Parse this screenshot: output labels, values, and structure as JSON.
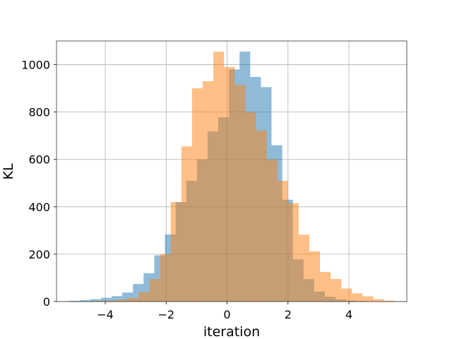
{
  "chart_data": {
    "type": "bar",
    "subtype": "overlapping-histogram",
    "xlabel": "iteration",
    "ylabel": "KL",
    "xlim": [
      -5.6,
      5.9
    ],
    "ylim": [
      0,
      1100
    ],
    "xticks": [
      -4,
      -2,
      0,
      2,
      4
    ],
    "yticks": [
      0,
      200,
      400,
      600,
      800,
      1000
    ],
    "grid": true,
    "series": [
      {
        "color": "#1f77b4",
        "opacity": 0.5,
        "bins": [
          {
            "x0": -5.19,
            "x1": -4.84,
            "value": 3
          },
          {
            "x0": -4.84,
            "x1": -4.49,
            "value": 6
          },
          {
            "x0": -4.49,
            "x1": -4.14,
            "value": 10
          },
          {
            "x0": -4.14,
            "x1": -3.79,
            "value": 16
          },
          {
            "x0": -3.79,
            "x1": -3.44,
            "value": 23
          },
          {
            "x0": -3.44,
            "x1": -3.09,
            "value": 38
          },
          {
            "x0": -3.09,
            "x1": -2.74,
            "value": 74
          },
          {
            "x0": -2.74,
            "x1": -2.39,
            "value": 120
          },
          {
            "x0": -2.39,
            "x1": -2.04,
            "value": 195
          },
          {
            "x0": -2.04,
            "x1": -1.69,
            "value": 283
          },
          {
            "x0": -1.69,
            "x1": -1.34,
            "value": 420
          },
          {
            "x0": -1.34,
            "x1": -0.99,
            "value": 510
          },
          {
            "x0": -0.99,
            "x1": -0.64,
            "value": 600
          },
          {
            "x0": -0.64,
            "x1": -0.29,
            "value": 718
          },
          {
            "x0": -0.29,
            "x1": 0.06,
            "value": 778
          },
          {
            "x0": 0.06,
            "x1": 0.41,
            "value": 980
          },
          {
            "x0": 0.41,
            "x1": 0.76,
            "value": 1055
          },
          {
            "x0": 0.76,
            "x1": 1.11,
            "value": 948
          },
          {
            "x0": 1.11,
            "x1": 1.46,
            "value": 905
          },
          {
            "x0": 1.46,
            "x1": 1.81,
            "value": 660
          },
          {
            "x0": 1.81,
            "x1": 2.16,
            "value": 430
          },
          {
            "x0": 2.16,
            "x1": 2.51,
            "value": 178
          },
          {
            "x0": 2.51,
            "x1": 2.86,
            "value": 95
          },
          {
            "x0": 2.86,
            "x1": 3.21,
            "value": 42
          },
          {
            "x0": 3.21,
            "x1": 3.56,
            "value": 20
          },
          {
            "x0": 3.56,
            "x1": 3.91,
            "value": 9
          },
          {
            "x0": 3.91,
            "x1": 4.26,
            "value": 4
          },
          {
            "x0": 4.26,
            "x1": 4.61,
            "value": 2
          }
        ]
      },
      {
        "color": "#ff7f0e",
        "opacity": 0.5,
        "bins": [
          {
            "x0": -4.3,
            "x1": -3.95,
            "value": 3
          },
          {
            "x0": -3.95,
            "x1": -3.6,
            "value": 5
          },
          {
            "x0": -3.6,
            "x1": -3.25,
            "value": 8
          },
          {
            "x0": -3.25,
            "x1": -2.9,
            "value": 15
          },
          {
            "x0": -2.9,
            "x1": -2.55,
            "value": 40
          },
          {
            "x0": -2.55,
            "x1": -2.2,
            "value": 95
          },
          {
            "x0": -2.2,
            "x1": -1.85,
            "value": 200
          },
          {
            "x0": -1.85,
            "x1": -1.5,
            "value": 420
          },
          {
            "x0": -1.5,
            "x1": -1.15,
            "value": 655
          },
          {
            "x0": -1.15,
            "x1": -0.8,
            "value": 900
          },
          {
            "x0": -0.8,
            "x1": -0.45,
            "value": 930
          },
          {
            "x0": -0.45,
            "x1": -0.1,
            "value": 1055
          },
          {
            "x0": -0.1,
            "x1": 0.25,
            "value": 990
          },
          {
            "x0": 0.25,
            "x1": 0.6,
            "value": 915
          },
          {
            "x0": 0.6,
            "x1": 0.95,
            "value": 800
          },
          {
            "x0": 0.95,
            "x1": 1.3,
            "value": 722
          },
          {
            "x0": 1.3,
            "x1": 1.65,
            "value": 600
          },
          {
            "x0": 1.65,
            "x1": 2.0,
            "value": 510
          },
          {
            "x0": 2.0,
            "x1": 2.35,
            "value": 415
          },
          {
            "x0": 2.35,
            "x1": 2.7,
            "value": 282
          },
          {
            "x0": 2.7,
            "x1": 3.05,
            "value": 212
          },
          {
            "x0": 3.05,
            "x1": 3.4,
            "value": 125
          },
          {
            "x0": 3.4,
            "x1": 3.75,
            "value": 95
          },
          {
            "x0": 3.75,
            "x1": 4.1,
            "value": 55
          },
          {
            "x0": 4.1,
            "x1": 4.45,
            "value": 35
          },
          {
            "x0": 4.45,
            "x1": 4.8,
            "value": 22
          },
          {
            "x0": 4.8,
            "x1": 5.15,
            "value": 10
          },
          {
            "x0": 5.15,
            "x1": 5.5,
            "value": 4
          }
        ]
      }
    ]
  }
}
